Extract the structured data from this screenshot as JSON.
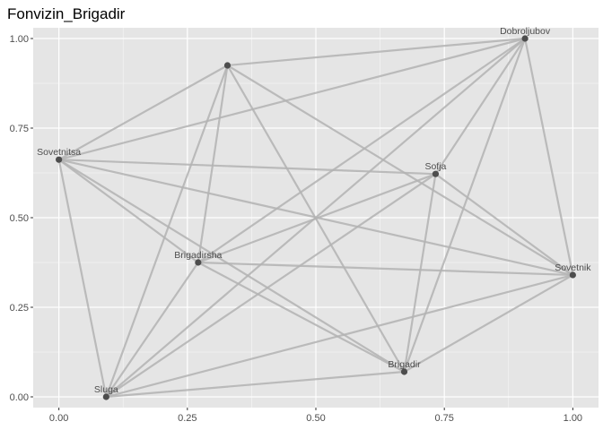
{
  "chart_data": {
    "type": "network",
    "title": "Fonvizin_Brigadir",
    "xlabel": "",
    "ylabel": "",
    "xlim": [
      -0.05,
      1.05
    ],
    "ylim": [
      -0.03,
      1.03
    ],
    "x_ticks": [
      0.0,
      0.25,
      0.5,
      0.75,
      1.0
    ],
    "x_tick_labels": [
      "0.00",
      "0.25",
      "0.50",
      "0.75",
      "1.00"
    ],
    "y_ticks": [
      0.0,
      0.25,
      0.5,
      0.75,
      1.0
    ],
    "y_tick_labels": [
      "0.00",
      "0.25",
      "0.50",
      "0.75",
      "1.00"
    ],
    "grid": true,
    "background": "#e5e5e5",
    "grid_color": "#ffffff",
    "edge_color": "#b3b3b3",
    "node_color": "#4d4d4d",
    "nodes": [
      {
        "id": "dobroljubov",
        "label": "Dobroljubov",
        "x": 0.907,
        "y": 1.0
      },
      {
        "id": "top",
        "label": "",
        "x": 0.328,
        "y": 0.925
      },
      {
        "id": "sovetnitsa",
        "label": "Sovetnitsa",
        "x": 0.0,
        "y": 0.662
      },
      {
        "id": "sofja",
        "label": "Sofja",
        "x": 0.733,
        "y": 0.622
      },
      {
        "id": "brigadirsha",
        "label": "Brigadirsha",
        "x": 0.271,
        "y": 0.375
      },
      {
        "id": "sovetnik",
        "label": "Sovetnik",
        "x": 1.0,
        "y": 0.34
      },
      {
        "id": "brigadir",
        "label": "Brigadir",
        "x": 0.672,
        "y": 0.07
      },
      {
        "id": "sluga",
        "label": "Sluga",
        "x": 0.092,
        "y": 0.0
      }
    ],
    "edges": [
      [
        "top",
        "dobroljubov"
      ],
      [
        "top",
        "sovetnitsa"
      ],
      [
        "top",
        "brigadirsha"
      ],
      [
        "top",
        "sluga"
      ],
      [
        "top",
        "brigadir"
      ],
      [
        "top",
        "sovetnik"
      ],
      [
        "sovetnitsa",
        "dobroljubov"
      ],
      [
        "sovetnitsa",
        "sofja"
      ],
      [
        "sovetnitsa",
        "brigadirsha"
      ],
      [
        "sovetnitsa",
        "sovetnik"
      ],
      [
        "sovetnitsa",
        "brigadir"
      ],
      [
        "sovetnitsa",
        "sluga"
      ],
      [
        "dobroljubov",
        "brigadirsha"
      ],
      [
        "dobroljubov",
        "sofja"
      ],
      [
        "dobroljubov",
        "sluga"
      ],
      [
        "dobroljubov",
        "brigadir"
      ],
      [
        "dobroljubov",
        "sovetnik"
      ],
      [
        "sofja",
        "brigadirsha"
      ],
      [
        "sofja",
        "sluga"
      ],
      [
        "sofja",
        "brigadir"
      ],
      [
        "sofja",
        "sovetnik"
      ],
      [
        "brigadirsha",
        "sovetnik"
      ],
      [
        "brigadirsha",
        "brigadir"
      ],
      [
        "brigadirsha",
        "sluga"
      ],
      [
        "sluga",
        "sovetnik"
      ],
      [
        "sluga",
        "brigadir"
      ],
      [
        "brigadir",
        "sovetnik"
      ]
    ]
  }
}
